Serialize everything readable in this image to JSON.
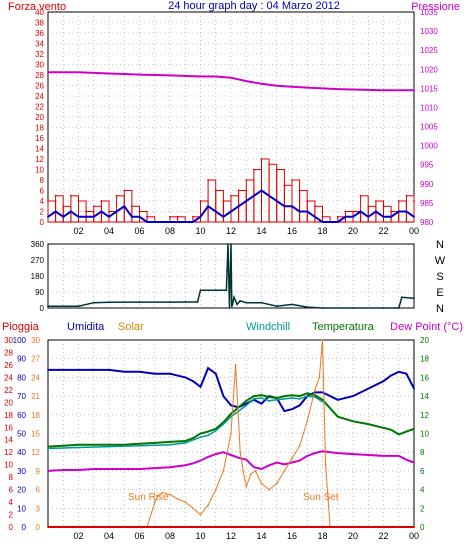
{
  "colors": {
    "wind": "#dd0000",
    "wind_avg": "#0000cc",
    "pressure": "#cc00cc",
    "direction": "#003333",
    "rain": "#dd0000",
    "humidity": "#0000bb",
    "solar": "#ee7722",
    "windchill": "#009999",
    "temperature": "#007700",
    "dewpoint": "#cc00cc",
    "header_title": "#0000aa",
    "frame": "#000000"
  },
  "header": {
    "left_label": "Forza vento",
    "title": "24 hour graph day : 04 Marzo 2012",
    "right_label": "Pressione"
  },
  "lower_header": {
    "rain": "Pioggia",
    "humidity": "Umidita",
    "solar": "Solar",
    "windchill": "Windchill",
    "temperature": "Temperatura",
    "dewpoint": "Dew Point (°C)"
  },
  "annotations": {
    "sunrise": "Sun Rise",
    "sunset": "Sun Set"
  },
  "x_ticks": [
    "02",
    "04",
    "06",
    "08",
    "10",
    "12",
    "14",
    "16",
    "18",
    "20",
    "22",
    "00"
  ],
  "chart_data": [
    {
      "type": "line",
      "id": "wind_pressure",
      "x_range": [
        0,
        24
      ],
      "left_axis": {
        "label": "Forza vento",
        "range": [
          0,
          40
        ],
        "ticks": [
          "0",
          "2",
          "4",
          "6",
          "8",
          "10",
          "12",
          "14",
          "16",
          "18",
          "20",
          "22",
          "24",
          "26",
          "28",
          "30",
          "32",
          "34",
          "36",
          "38",
          "40"
        ]
      },
      "right_axis": {
        "label": "Pressione",
        "range": [
          980,
          1035
        ],
        "ticks": [
          "980",
          "985",
          "990",
          "995",
          "1000",
          "1005",
          "1010",
          "1015",
          "1020",
          "1025",
          "1030",
          "1035"
        ]
      },
      "series": [
        {
          "name": "pressure",
          "axis": "right",
          "x": [
            0,
            2,
            4,
            6,
            8,
            10,
            11,
            12,
            13,
            14,
            15,
            16,
            17,
            18,
            19,
            20,
            22,
            24
          ],
          "y": [
            1019.2,
            1019.2,
            1018.9,
            1018.6,
            1018.4,
            1018.1,
            1018.1,
            1017.8,
            1016.9,
            1016.2,
            1015.7,
            1015.4,
            1015.2,
            1015.0,
            1014.8,
            1014.7,
            1014.5,
            1014.5
          ]
        },
        {
          "name": "wind_gust",
          "axis": "left",
          "x": [
            0,
            0.5,
            1,
            1.5,
            2,
            2.5,
            3,
            3.5,
            4,
            4.5,
            5,
            5.5,
            6,
            6.5,
            7,
            7.5,
            8,
            8.5,
            9,
            9.5,
            10,
            10.5,
            11,
            11.5,
            12,
            12.5,
            13,
            13.5,
            14,
            14.5,
            15,
            15.5,
            16,
            16.5,
            17,
            17.5,
            18,
            18.5,
            19,
            19.5,
            20,
            20.5,
            21,
            21.5,
            22,
            22.5,
            23,
            23.5,
            24
          ],
          "y": [
            4,
            5,
            3,
            5,
            4,
            2,
            3,
            4,
            2,
            5,
            6,
            3,
            2,
            1,
            0,
            0,
            1,
            1,
            0,
            1,
            4,
            8,
            6,
            4,
            5,
            6,
            8,
            10,
            12,
            11,
            10,
            7,
            8,
            6,
            4,
            3,
            1,
            0,
            1,
            2,
            2,
            5,
            3,
            4,
            3,
            2,
            4,
            5,
            4
          ]
        },
        {
          "name": "wind_avg",
          "axis": "left",
          "x": [
            0,
            0.5,
            1,
            1.5,
            2,
            2.5,
            3,
            3.5,
            4,
            4.5,
            5,
            5.5,
            6,
            6.5,
            7,
            7.5,
            8,
            8.5,
            9,
            9.5,
            10,
            10.5,
            11,
            11.5,
            12,
            12.5,
            13,
            13.5,
            14,
            14.5,
            15,
            15.5,
            16,
            16.5,
            17,
            17.5,
            18,
            18.5,
            19,
            19.5,
            20,
            20.5,
            21,
            21.5,
            22,
            22.5,
            23,
            23.5,
            24
          ],
          "y": [
            1,
            2,
            1,
            2,
            1,
            1,
            1,
            2,
            1,
            2,
            3,
            1,
            1,
            0,
            0,
            0,
            0,
            0,
            0,
            0,
            1,
            3,
            2,
            1,
            2,
            3,
            4,
            5,
            6,
            5,
            4,
            3,
            3,
            2,
            2,
            1,
            0,
            0,
            0,
            1,
            1,
            2,
            1,
            2,
            1,
            1,
            2,
            2,
            1
          ]
        }
      ]
    },
    {
      "type": "line",
      "id": "wind_direction",
      "x_range": [
        0,
        24
      ],
      "left_axis": {
        "range": [
          0,
          360
        ],
        "ticks": [
          "0",
          "90",
          "180",
          "270",
          "360"
        ]
      },
      "right_axis": {
        "ticks": [
          "N",
          "E",
          "S",
          "W",
          "N"
        ]
      },
      "series": [
        {
          "name": "direction",
          "x": [
            0,
            2,
            3,
            4,
            6,
            8,
            9,
            9.8,
            10,
            11,
            11.7,
            11.8,
            11.9,
            12,
            12.05,
            12.1,
            12.2,
            12.4,
            12.6,
            13,
            14,
            15,
            16,
            17,
            18,
            20,
            22,
            23,
            23.2,
            24
          ],
          "y": [
            10,
            10,
            30,
            32,
            33,
            33,
            34,
            34,
            100,
            100,
            100,
            360,
            0,
            360,
            10,
            20,
            60,
            20,
            40,
            30,
            30,
            10,
            20,
            5,
            0,
            0,
            0,
            0,
            60,
            55
          ]
        }
      ]
    },
    {
      "type": "line",
      "id": "rain_temp",
      "x_range": [
        0,
        24
      ],
      "axes": {
        "rain": {
          "range": [
            0,
            30
          ],
          "ticks": [
            "0",
            "2",
            "4",
            "6",
            "8",
            "10",
            "12",
            "14",
            "16",
            "18",
            "20",
            "22",
            "24",
            "26",
            "28",
            "30"
          ]
        },
        "humidity": {
          "range": [
            0,
            100
          ],
          "ticks": [
            "0",
            "10",
            "20",
            "30",
            "40",
            "50",
            "60",
            "70",
            "80",
            "90",
            "100"
          ]
        },
        "solar": {
          "range": [
            0,
            30
          ],
          "ticks": [
            "0",
            "3",
            "6",
            "9",
            "12",
            "15",
            "18",
            "21",
            "24",
            "27",
            "30"
          ]
        },
        "temperature": {
          "range": [
            0,
            20
          ],
          "ticks": [
            "0",
            "2",
            "4",
            "6",
            "8",
            "10",
            "12",
            "14",
            "16",
            "18",
            "20"
          ]
        }
      },
      "series": [
        {
          "name": "humidity",
          "axis": "humidity",
          "x": [
            0,
            1,
            2,
            3,
            4,
            5,
            6,
            7,
            8,
            9,
            9.5,
            10,
            10.5,
            11,
            11.5,
            12,
            12.5,
            13,
            13.5,
            14,
            14.5,
            15,
            15.5,
            16,
            16.5,
            17,
            17.5,
            18,
            19,
            20,
            21,
            22,
            22.5,
            23,
            23.5,
            24
          ],
          "y": [
            84,
            84,
            84,
            84,
            84,
            83,
            83,
            82,
            82,
            80,
            78,
            75,
            85,
            82,
            70,
            65,
            64,
            66,
            68,
            66,
            70,
            69,
            62,
            63,
            65,
            70,
            72,
            72,
            68,
            70,
            74,
            78,
            81,
            83,
            82,
            74
          ]
        },
        {
          "name": "temperature",
          "axis": "temperature",
          "x": [
            0,
            1,
            2,
            3,
            4,
            5,
            6,
            7,
            8,
            9,
            9.5,
            10,
            10.5,
            11,
            11.5,
            12,
            12.5,
            13,
            13.5,
            14,
            14.5,
            15,
            15.5,
            16,
            16.5,
            17,
            17.5,
            18,
            19,
            20,
            21,
            22,
            22.5,
            23,
            23.5,
            24
          ],
          "y": [
            8.6,
            8.7,
            8.8,
            8.8,
            8.8,
            8.8,
            8.9,
            9.0,
            9.1,
            9.2,
            9.5,
            10.0,
            10.2,
            10.5,
            11.2,
            12.1,
            12.8,
            13.5,
            14.0,
            14.1,
            13.9,
            13.8,
            14.0,
            14.1,
            14.0,
            14.3,
            14.1,
            13.6,
            11.8,
            11.3,
            11.0,
            10.6,
            10.4,
            9.9,
            10.2,
            10.5
          ]
        },
        {
          "name": "windchill",
          "axis": "temperature",
          "x": [
            0,
            2,
            4,
            6,
            8,
            9,
            10,
            10.5,
            11,
            11.5,
            12,
            12.5,
            13,
            13.5,
            14,
            14.5,
            15,
            15.5,
            16,
            16.5,
            17,
            17.5,
            18
          ],
          "y": [
            8.4,
            8.5,
            8.6,
            8.7,
            8.8,
            9.0,
            9.6,
            9.8,
            10.3,
            11.0,
            11.8,
            12.4,
            13.0,
            13.7,
            13.8,
            13.5,
            13.6,
            13.7,
            13.8,
            13.7,
            14.0,
            13.9,
            13.4
          ]
        },
        {
          "name": "dewpoint",
          "axis": "temperature",
          "x": [
            0,
            1,
            2,
            3,
            4,
            5,
            6,
            7,
            8,
            9,
            9.5,
            10,
            10.5,
            11,
            11.5,
            12,
            12.5,
            13,
            13.5,
            14,
            14.5,
            15,
            15.5,
            16,
            16.5,
            17,
            17.5,
            18,
            19,
            20,
            21,
            22,
            23,
            23.5,
            24
          ],
          "y": [
            6.0,
            6.1,
            6.1,
            6.2,
            6.2,
            6.2,
            6.2,
            6.3,
            6.4,
            6.6,
            6.8,
            7.1,
            7.5,
            7.8,
            8.0,
            7.7,
            7.4,
            7.2,
            6.4,
            6.2,
            6.6,
            6.9,
            6.7,
            6.9,
            7.1,
            7.6,
            7.9,
            8.1,
            7.9,
            7.8,
            7.7,
            7.6,
            7.6,
            7.2,
            6.9
          ]
        },
        {
          "name": "solar",
          "axis": "solar",
          "x": [
            0,
            6.5,
            7,
            7.2,
            7.5,
            8,
            8.5,
            9,
            9.5,
            10,
            10.5,
            11,
            11.5,
            12,
            12.3,
            12.6,
            12.8,
            13,
            13.3,
            13.6,
            14,
            14.5,
            15,
            15.5,
            16,
            16.5,
            17,
            17.5,
            17.8,
            18,
            18.2,
            18.5,
            24
          ],
          "y": [
            0,
            0,
            4.0,
            5.0,
            5.5,
            5.2,
            4.5,
            4.0,
            3.0,
            2.0,
            3.5,
            6.0,
            9.0,
            15.0,
            26.0,
            12.0,
            9.0,
            6.5,
            8.5,
            9.0,
            7.0,
            6.0,
            7.0,
            9.0,
            11.0,
            13.0,
            17.0,
            22.0,
            24.0,
            30.0,
            10.0,
            0,
            0
          ]
        },
        {
          "name": "rain",
          "axis": "rain",
          "x": [
            0,
            24
          ],
          "y": [
            0,
            0
          ]
        }
      ]
    }
  ]
}
